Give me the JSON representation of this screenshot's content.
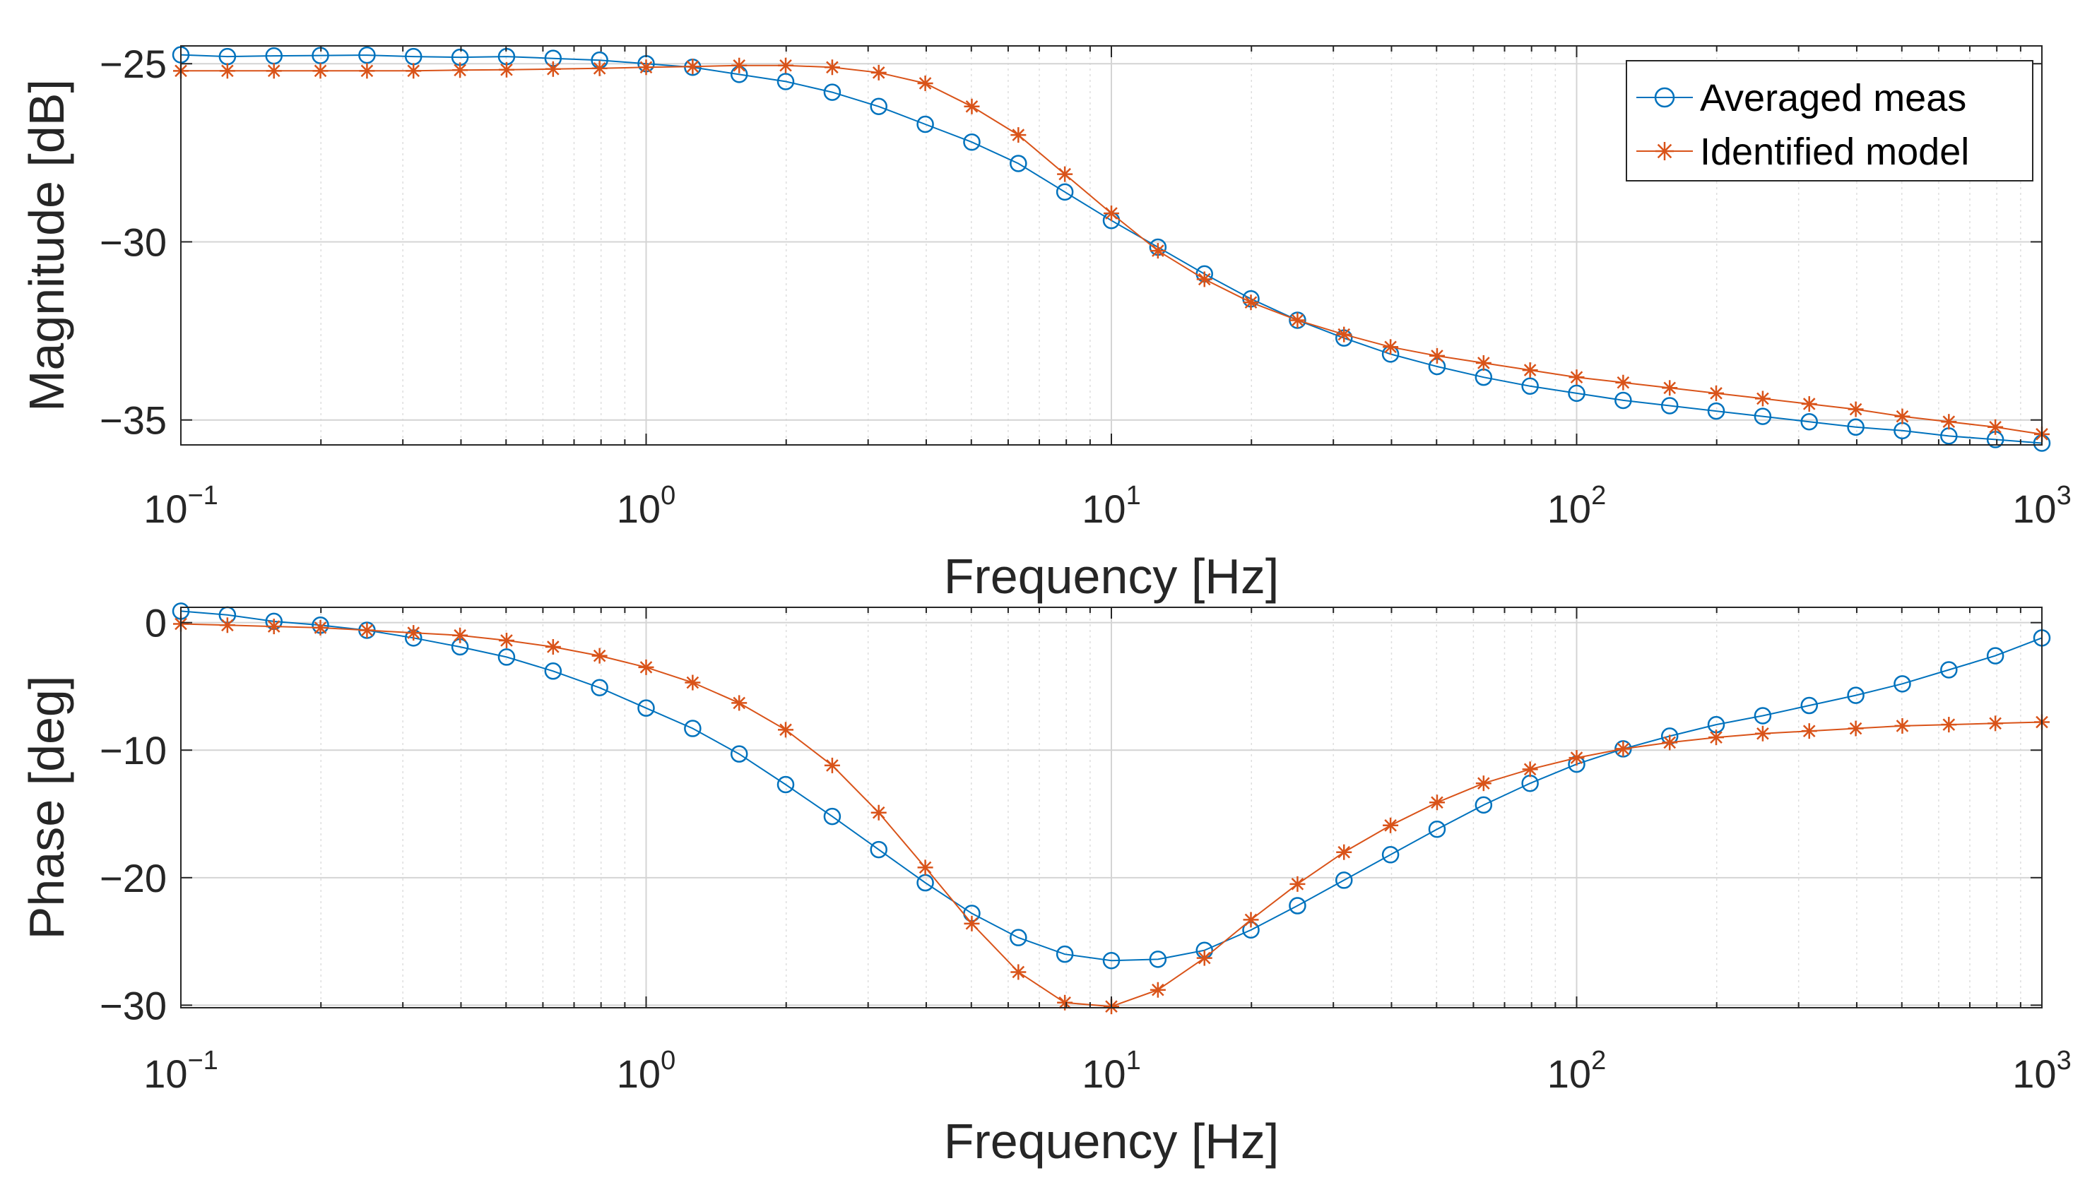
{
  "chart_data": [
    {
      "id": "magnitude",
      "type": "line",
      "title": "",
      "xlabel": "Frequency [Hz]",
      "ylabel": "Magnitude [dB]",
      "xscale": "log",
      "xlim": [
        0.1,
        1000
      ],
      "ylim": [
        -35.7,
        -24.5
      ],
      "xticks": [
        {
          "value": 0.1,
          "base": "10",
          "exp": "−1"
        },
        {
          "value": 1,
          "base": "10",
          "exp": "0"
        },
        {
          "value": 10,
          "base": "10",
          "exp": "1"
        },
        {
          "value": 100,
          "base": "10",
          "exp": "2"
        },
        {
          "value": 1000,
          "base": "10",
          "exp": "3"
        }
      ],
      "yticks": [
        {
          "value": -25,
          "label": "−25"
        },
        {
          "value": -30,
          "label": "−30"
        },
        {
          "value": -35,
          "label": "−35"
        }
      ],
      "grid": true,
      "legend": {
        "position": "top-right",
        "entries": [
          "Averaged meas",
          "Identified model"
        ]
      },
      "series": [
        {
          "name": "Averaged meas",
          "color": "#0072BD",
          "marker": "circle",
          "x": [
            0.1,
            0.1259,
            0.1585,
            0.1995,
            0.2512,
            0.3162,
            0.3981,
            0.5012,
            0.631,
            0.7943,
            1,
            1.259,
            1.585,
            1.995,
            2.512,
            3.162,
            3.981,
            5.012,
            6.31,
            7.943,
            10,
            12.59,
            15.85,
            19.95,
            25.12,
            31.62,
            39.81,
            50.12,
            63.1,
            79.43,
            100,
            125.9,
            158.5,
            199.5,
            251.2,
            316.2,
            398.1,
            501.2,
            631,
            794.3,
            1000
          ],
          "y": [
            -24.75,
            -24.8,
            -24.78,
            -24.77,
            -24.76,
            -24.8,
            -24.82,
            -24.8,
            -24.85,
            -24.9,
            -25.0,
            -25.1,
            -25.3,
            -25.5,
            -25.8,
            -26.2,
            -26.7,
            -27.2,
            -27.8,
            -28.6,
            -29.4,
            -30.15,
            -30.9,
            -31.6,
            -32.2,
            -32.7,
            -33.15,
            -33.5,
            -33.8,
            -34.05,
            -34.25,
            -34.45,
            -34.6,
            -34.75,
            -34.9,
            -35.05,
            -35.2,
            -35.3,
            -35.45,
            -35.55,
            -35.65
          ]
        },
        {
          "name": "Identified model",
          "color": "#D95319",
          "marker": "asterisk",
          "x": [
            0.1,
            0.1259,
            0.1585,
            0.1995,
            0.2512,
            0.3162,
            0.3981,
            0.5012,
            0.631,
            0.7943,
            1,
            1.259,
            1.585,
            1.995,
            2.512,
            3.162,
            3.981,
            5.012,
            6.31,
            7.943,
            10,
            12.59,
            15.85,
            19.95,
            25.12,
            31.62,
            39.81,
            50.12,
            63.1,
            79.43,
            100,
            125.9,
            158.5,
            199.5,
            251.2,
            316.2,
            398.1,
            501.2,
            631,
            794.3,
            1000
          ],
          "y": [
            -25.2,
            -25.2,
            -25.2,
            -25.2,
            -25.2,
            -25.2,
            -25.18,
            -25.17,
            -25.15,
            -25.13,
            -25.1,
            -25.08,
            -25.05,
            -25.05,
            -25.1,
            -25.25,
            -25.55,
            -26.2,
            -27.0,
            -28.1,
            -29.2,
            -30.25,
            -31.05,
            -31.7,
            -32.2,
            -32.6,
            -32.95,
            -33.2,
            -33.4,
            -33.6,
            -33.8,
            -33.95,
            -34.1,
            -34.25,
            -34.4,
            -34.55,
            -34.7,
            -34.9,
            -35.05,
            -35.2,
            -35.4
          ]
        }
      ]
    },
    {
      "id": "phase",
      "type": "line",
      "title": "",
      "xlabel": "Frequency [Hz]",
      "ylabel": "Phase [deg]",
      "xscale": "log",
      "xlim": [
        0.1,
        1000
      ],
      "ylim": [
        -30.2,
        1.2
      ],
      "xticks": [
        {
          "value": 0.1,
          "base": "10",
          "exp": "−1"
        },
        {
          "value": 1,
          "base": "10",
          "exp": "0"
        },
        {
          "value": 10,
          "base": "10",
          "exp": "1"
        },
        {
          "value": 100,
          "base": "10",
          "exp": "2"
        },
        {
          "value": 1000,
          "base": "10",
          "exp": "3"
        }
      ],
      "yticks": [
        {
          "value": 0,
          "label": "0"
        },
        {
          "value": -10,
          "label": "−10"
        },
        {
          "value": -20,
          "label": "−20"
        },
        {
          "value": -30,
          "label": "−30"
        }
      ],
      "grid": true,
      "series": [
        {
          "name": "Averaged meas",
          "color": "#0072BD",
          "marker": "circle",
          "x": [
            0.1,
            0.1259,
            0.1585,
            0.1995,
            0.2512,
            0.3162,
            0.3981,
            0.5012,
            0.631,
            0.7943,
            1,
            1.259,
            1.585,
            1.995,
            2.512,
            3.162,
            3.981,
            5.012,
            6.31,
            7.943,
            10,
            12.59,
            15.85,
            19.95,
            25.12,
            31.62,
            39.81,
            50.12,
            63.1,
            79.43,
            100,
            125.9,
            158.5,
            199.5,
            251.2,
            316.2,
            398.1,
            501.2,
            631,
            794.3,
            1000
          ],
          "y": [
            0.9,
            0.6,
            0.1,
            -0.2,
            -0.6,
            -1.2,
            -1.9,
            -2.7,
            -3.8,
            -5.1,
            -6.7,
            -8.3,
            -10.3,
            -12.7,
            -15.2,
            -17.8,
            -20.4,
            -22.8,
            -24.7,
            -26.0,
            -26.5,
            -26.4,
            -25.7,
            -24.1,
            -22.2,
            -20.2,
            -18.2,
            -16.2,
            -14.3,
            -12.6,
            -11.1,
            -9.9,
            -8.9,
            -8.0,
            -7.3,
            -6.5,
            -5.7,
            -4.8,
            -3.7,
            -2.6,
            -1.2
          ]
        },
        {
          "name": "Identified model",
          "color": "#D95319",
          "marker": "asterisk",
          "x": [
            0.1,
            0.1259,
            0.1585,
            0.1995,
            0.2512,
            0.3162,
            0.3981,
            0.5012,
            0.631,
            0.7943,
            1,
            1.259,
            1.585,
            1.995,
            2.512,
            3.162,
            3.981,
            5.012,
            6.31,
            7.943,
            10,
            12.59,
            15.85,
            19.95,
            25.12,
            31.62,
            39.81,
            50.12,
            63.1,
            79.43,
            100,
            125.9,
            158.5,
            199.5,
            251.2,
            316.2,
            398.1,
            501.2,
            631,
            794.3,
            1000
          ],
          "y": [
            -0.1,
            -0.2,
            -0.3,
            -0.4,
            -0.6,
            -0.8,
            -1.0,
            -1.4,
            -1.9,
            -2.6,
            -3.5,
            -4.7,
            -6.3,
            -8.4,
            -11.2,
            -14.9,
            -19.2,
            -23.6,
            -27.4,
            -29.8,
            -30.1,
            -28.8,
            -26.3,
            -23.3,
            -20.5,
            -18.0,
            -15.9,
            -14.1,
            -12.6,
            -11.5,
            -10.6,
            -9.9,
            -9.4,
            -9.0,
            -8.7,
            -8.5,
            -8.3,
            -8.1,
            -8.0,
            -7.9,
            -7.8
          ]
        }
      ]
    }
  ]
}
